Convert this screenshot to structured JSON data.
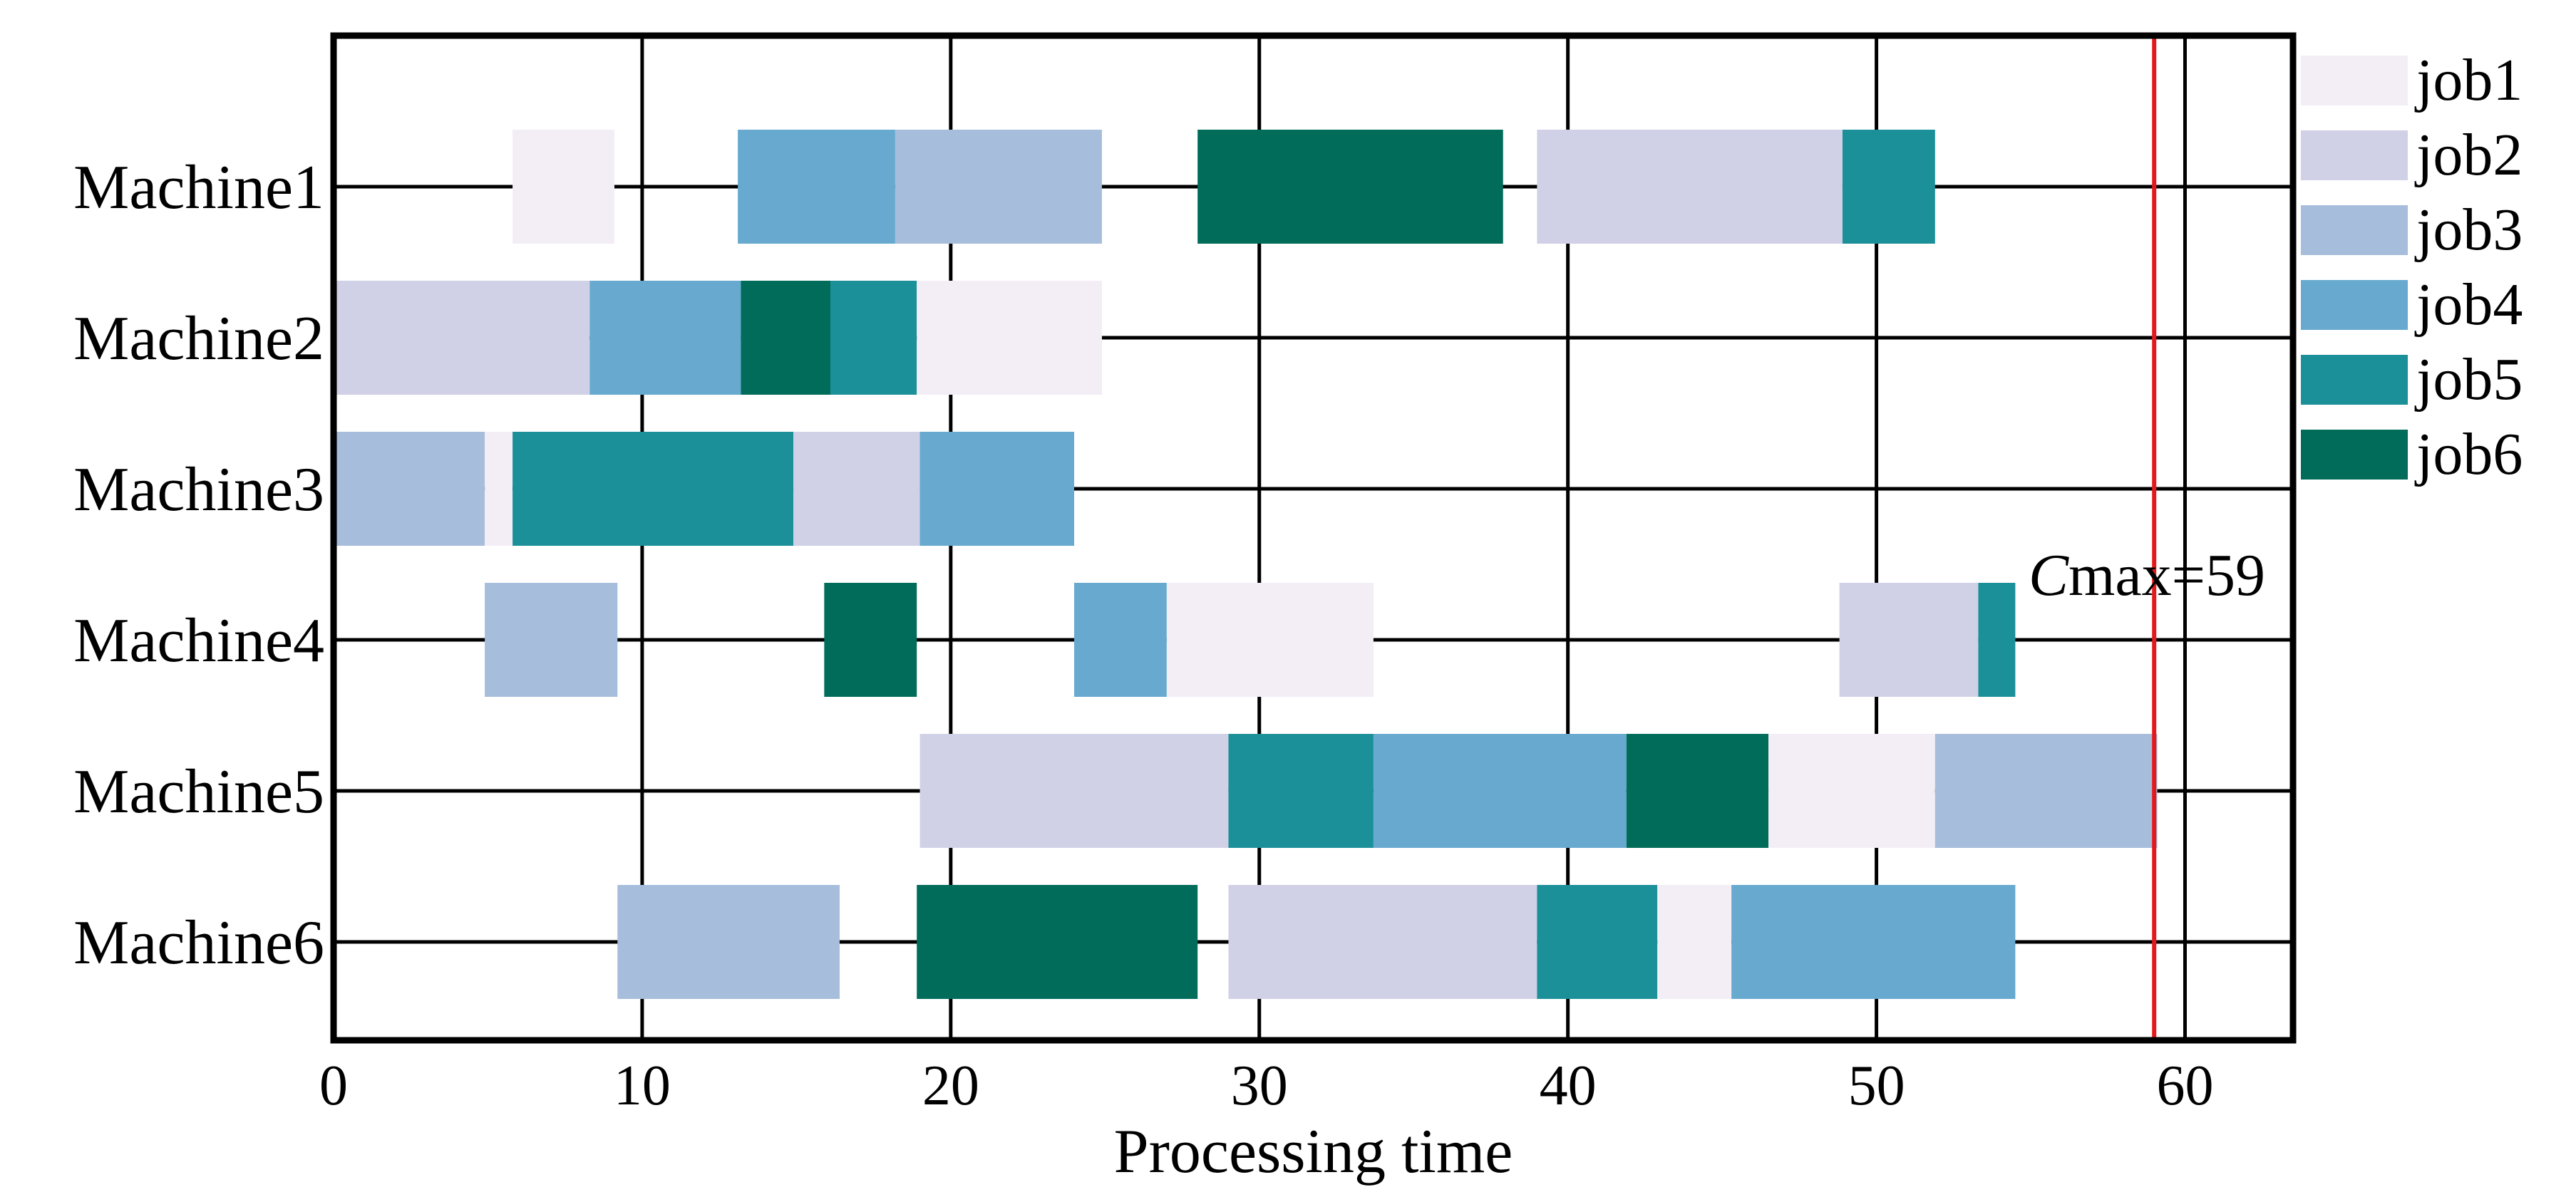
{
  "chart_data": {
    "type": "gantt",
    "xlabel": "Processing time",
    "x_ticks": [
      0,
      10,
      20,
      30,
      40,
      50,
      60
    ],
    "xlim": [
      0,
      63.5
    ],
    "grid": "vertical gridlines at x ticks; horizontal line through each machine row",
    "machines": [
      "Machine1",
      "Machine2",
      "Machine3",
      "Machine4",
      "Machine5",
      "Machine6"
    ],
    "jobs": [
      {
        "name": "job1",
        "color": "#f3eef6"
      },
      {
        "name": "job2",
        "color": "#d0d1e6"
      },
      {
        "name": "job3",
        "color": "#a6bddb"
      },
      {
        "name": "job4",
        "color": "#67a9cf"
      },
      {
        "name": "job5",
        "color": "#1c9099"
      },
      {
        "name": "job6",
        "color": "#016c59"
      }
    ],
    "legend_position": "right",
    "tasks": [
      {
        "machine": "Machine1",
        "job": "job1",
        "start": 5.8,
        "end": 9.1
      },
      {
        "machine": "Machine1",
        "job": "job4",
        "start": 13.1,
        "end": 18.2
      },
      {
        "machine": "Machine1",
        "job": "job3",
        "start": 18.2,
        "end": 24.9
      },
      {
        "machine": "Machine1",
        "job": "job6",
        "start": 28.0,
        "end": 37.9
      },
      {
        "machine": "Machine1",
        "job": "job2",
        "start": 39.0,
        "end": 48.9
      },
      {
        "machine": "Machine1",
        "job": "job5",
        "start": 48.9,
        "end": 51.9
      },
      {
        "machine": "Machine2",
        "job": "job2",
        "start": 0,
        "end": 8.3
      },
      {
        "machine": "Machine2",
        "job": "job4",
        "start": 8.3,
        "end": 13.2
      },
      {
        "machine": "Machine2",
        "job": "job6",
        "start": 13.2,
        "end": 16.1
      },
      {
        "machine": "Machine2",
        "job": "job5",
        "start": 16.1,
        "end": 18.9
      },
      {
        "machine": "Machine2",
        "job": "job1",
        "start": 18.9,
        "end": 24.9
      },
      {
        "machine": "Machine3",
        "job": "job3",
        "start": 0,
        "end": 4.9
      },
      {
        "machine": "Machine3",
        "job": "job1",
        "start": 4.9,
        "end": 5.8
      },
      {
        "machine": "Machine3",
        "job": "job5",
        "start": 5.8,
        "end": 14.9
      },
      {
        "machine": "Machine3",
        "job": "job2",
        "start": 14.9,
        "end": 19.0
      },
      {
        "machine": "Machine3",
        "job": "job4",
        "start": 19.0,
        "end": 24.0
      },
      {
        "machine": "Machine4",
        "job": "job3",
        "start": 4.9,
        "end": 9.2
      },
      {
        "machine": "Machine4",
        "job": "job6",
        "start": 15.9,
        "end": 18.9
      },
      {
        "machine": "Machine4",
        "job": "job4",
        "start": 24.0,
        "end": 27.0
      },
      {
        "machine": "Machine4",
        "job": "job1",
        "start": 27.0,
        "end": 33.7
      },
      {
        "machine": "Machine4",
        "job": "job2",
        "start": 48.8,
        "end": 53.3
      },
      {
        "machine": "Machine4",
        "job": "job5",
        "start": 53.3,
        "end": 54.5
      },
      {
        "machine": "Machine5",
        "job": "job2",
        "start": 19.0,
        "end": 29.0
      },
      {
        "machine": "Machine5",
        "job": "job5",
        "start": 29.0,
        "end": 33.7
      },
      {
        "machine": "Machine5",
        "job": "job4",
        "start": 33.7,
        "end": 41.9
      },
      {
        "machine": "Machine5",
        "job": "job6",
        "start": 41.9,
        "end": 46.5
      },
      {
        "machine": "Machine5",
        "job": "job1",
        "start": 46.5,
        "end": 51.9
      },
      {
        "machine": "Machine5",
        "job": "job3",
        "start": 51.9,
        "end": 59.1
      },
      {
        "machine": "Machine6",
        "job": "job3",
        "start": 9.2,
        "end": 16.4
      },
      {
        "machine": "Machine6",
        "job": "job6",
        "start": 18.9,
        "end": 28.0
      },
      {
        "machine": "Machine6",
        "job": "job2",
        "start": 29.0,
        "end": 39.0
      },
      {
        "machine": "Machine6",
        "job": "job5",
        "start": 39.0,
        "end": 42.9
      },
      {
        "machine": "Machine6",
        "job": "job1",
        "start": 42.9,
        "end": 45.3
      },
      {
        "machine": "Machine6",
        "job": "job4",
        "start": 45.3,
        "end": 54.5
      }
    ],
    "cmax": {
      "value": 59,
      "label_italic": "C",
      "label_rest": "max=59",
      "color": "#e31a1c"
    }
  }
}
